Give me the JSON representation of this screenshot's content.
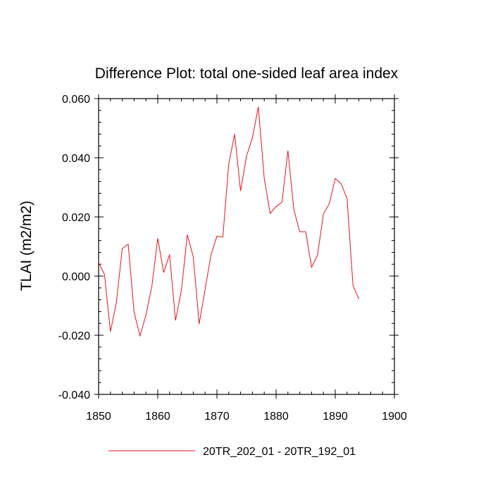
{
  "chart_data": {
    "type": "line",
    "title": "Difference Plot: total one-sided leaf area index",
    "xlabel": "",
    "ylabel": "TLAI  (m2/m2)",
    "xlim": [
      1850,
      1900
    ],
    "ylim": [
      -0.04,
      0.06
    ],
    "x_ticks": [
      1850,
      1860,
      1870,
      1880,
      1890,
      1900
    ],
    "x_tick_labels": [
      "1850",
      "1860",
      "1870",
      "1880",
      "1890",
      "1900"
    ],
    "y_ticks": [
      -0.04,
      -0.02,
      0.0,
      0.02,
      0.04,
      0.06
    ],
    "y_tick_labels": [
      "-0.040",
      "-0.020",
      "0.000",
      "0.020",
      "0.040",
      "0.060"
    ],
    "grid": false,
    "legend_position": "bottom-center",
    "series": [
      {
        "name": "20TR_202_01 - 20TR_192_01",
        "color": "#e8131a",
        "x": [
          1850,
          1851,
          1852,
          1853,
          1854,
          1855,
          1856,
          1857,
          1858,
          1859,
          1860,
          1861,
          1862,
          1863,
          1864,
          1865,
          1866,
          1867,
          1868,
          1869,
          1870,
          1871,
          1872,
          1873,
          1874,
          1875,
          1876,
          1877,
          1878,
          1879,
          1880,
          1881,
          1882,
          1883,
          1884,
          1885,
          1886,
          1887,
          1888,
          1889,
          1890,
          1891,
          1892,
          1893,
          1894
        ],
        "y": [
          0.0045,
          0.0005,
          -0.0188,
          -0.009,
          0.0093,
          0.0108,
          -0.0122,
          -0.0202,
          -0.0132,
          -0.0035,
          0.0128,
          0.0012,
          0.0073,
          -0.015,
          -0.0048,
          0.014,
          0.0065,
          -0.0162,
          -0.0045,
          0.0072,
          0.0135,
          0.0132,
          0.038,
          0.048,
          0.0288,
          0.0405,
          0.0468,
          0.0572,
          0.033,
          0.0212,
          0.0235,
          0.025,
          0.0424,
          0.0225,
          0.015,
          0.015,
          0.003,
          0.007,
          0.021,
          0.0245,
          0.033,
          0.0312,
          0.0262,
          -0.0032,
          -0.0078
        ]
      }
    ]
  }
}
